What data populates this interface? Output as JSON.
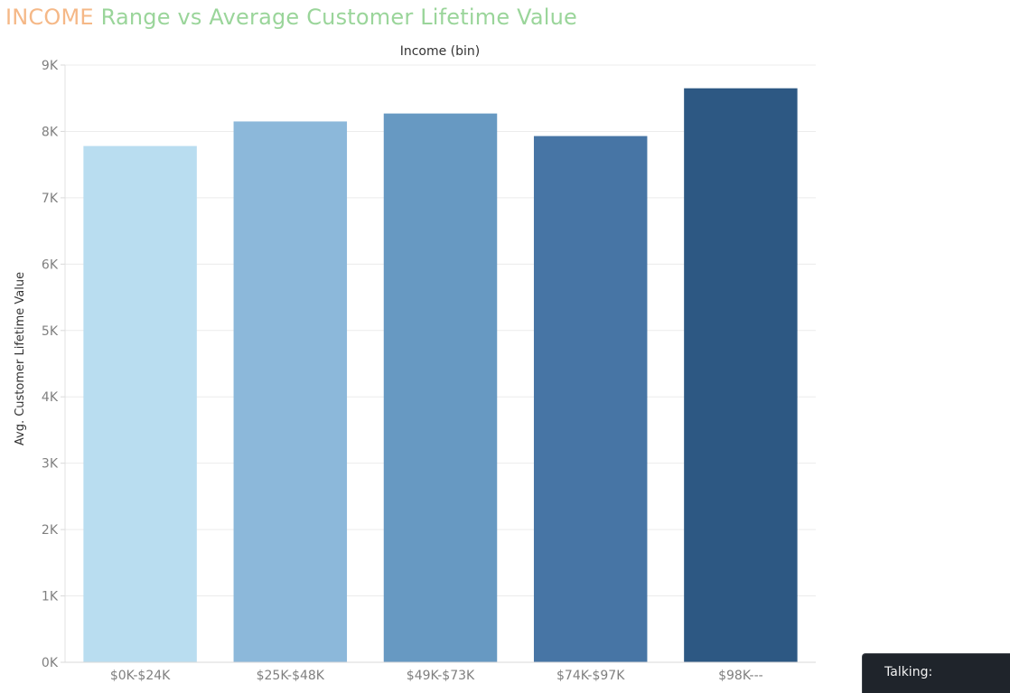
{
  "title": {
    "highlight": "INCOME",
    "rest": " Range vs Average Customer Lifetime Value",
    "highlight_color": "#f5b887",
    "rest_color": "#9ad59a"
  },
  "talking": {
    "label": "Talking:"
  },
  "chart_data": {
    "type": "bar",
    "title": "",
    "xlabel": "Income (bin)",
    "ylabel": "Avg. Customer Lifetime Value",
    "x_axis_position": "top",
    "categories": [
      "$0K-$24K",
      "$25K-$48K",
      "$49K-$73K",
      "$74K-$97K",
      "$98K---"
    ],
    "values": [
      7780,
      8150,
      8270,
      7930,
      8650
    ],
    "colors": [
      "#b9ddf0",
      "#8cb8da",
      "#6799c2",
      "#4775a5",
      "#2d5883"
    ],
    "ylim": [
      0,
      9000
    ],
    "yticks": [
      0,
      1000,
      2000,
      3000,
      4000,
      5000,
      6000,
      7000,
      8000,
      9000
    ],
    "ytick_labels": [
      "0K",
      "1K",
      "2K",
      "3K",
      "4K",
      "5K",
      "6K",
      "7K",
      "8K",
      "9K"
    ],
    "grid": true
  }
}
